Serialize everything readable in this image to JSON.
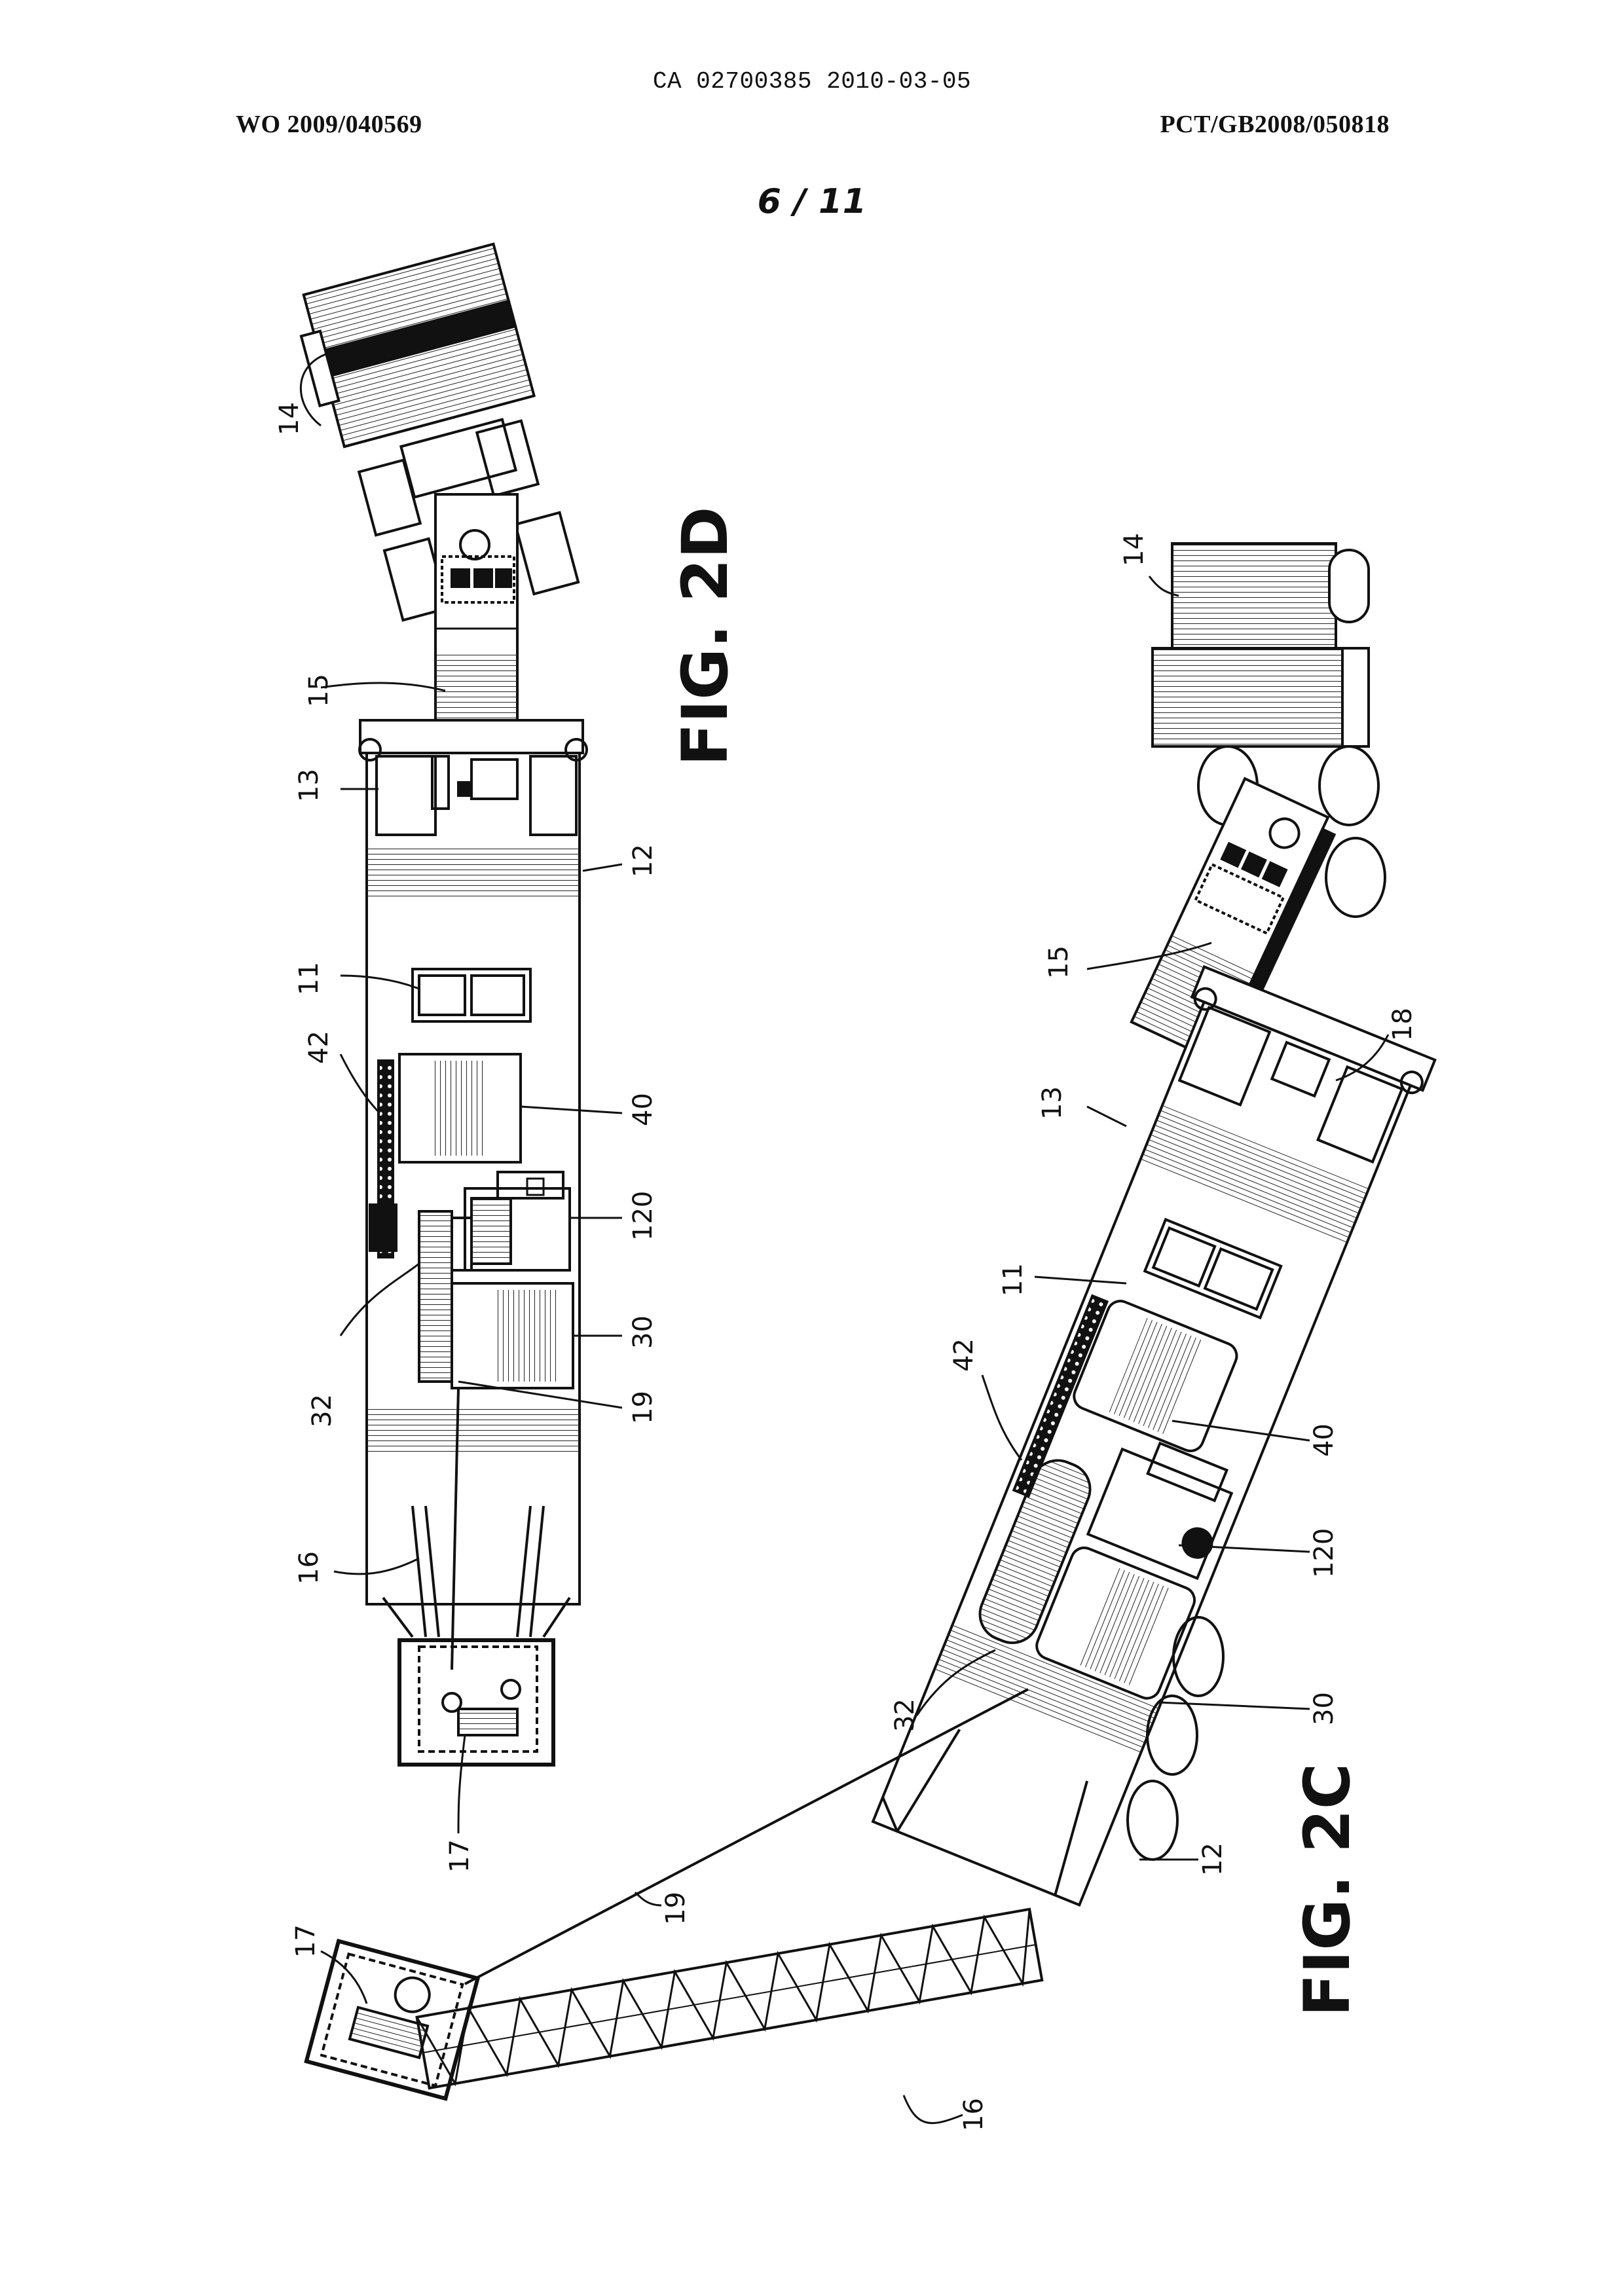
{
  "header": {
    "document_id": "CA 02700385 2010-03-05",
    "publication_number": "WO 2009/040569",
    "application_number": "PCT/GB2008/050818",
    "sheet": "6 / 11"
  },
  "fig_2d": {
    "title": "FIG. 2D",
    "labels": {
      "l14": "14",
      "l15": "15",
      "l13": "13",
      "l12": "12",
      "l11": "11",
      "l42": "42",
      "l40": "40",
      "l120": "120",
      "l32": "32",
      "l30": "30",
      "l19": "19",
      "l16": "16",
      "l17": "17"
    }
  },
  "fig_2c": {
    "title": "FIG. 2C",
    "labels": {
      "l14": "14",
      "l15": "15",
      "l13": "13",
      "l18": "18",
      "l11": "11",
      "l42": "42",
      "l40": "40",
      "l120": "120",
      "l32": "32",
      "l30": "30",
      "l12": "12",
      "l19": "19",
      "l17": "17",
      "l16": "16"
    }
  }
}
